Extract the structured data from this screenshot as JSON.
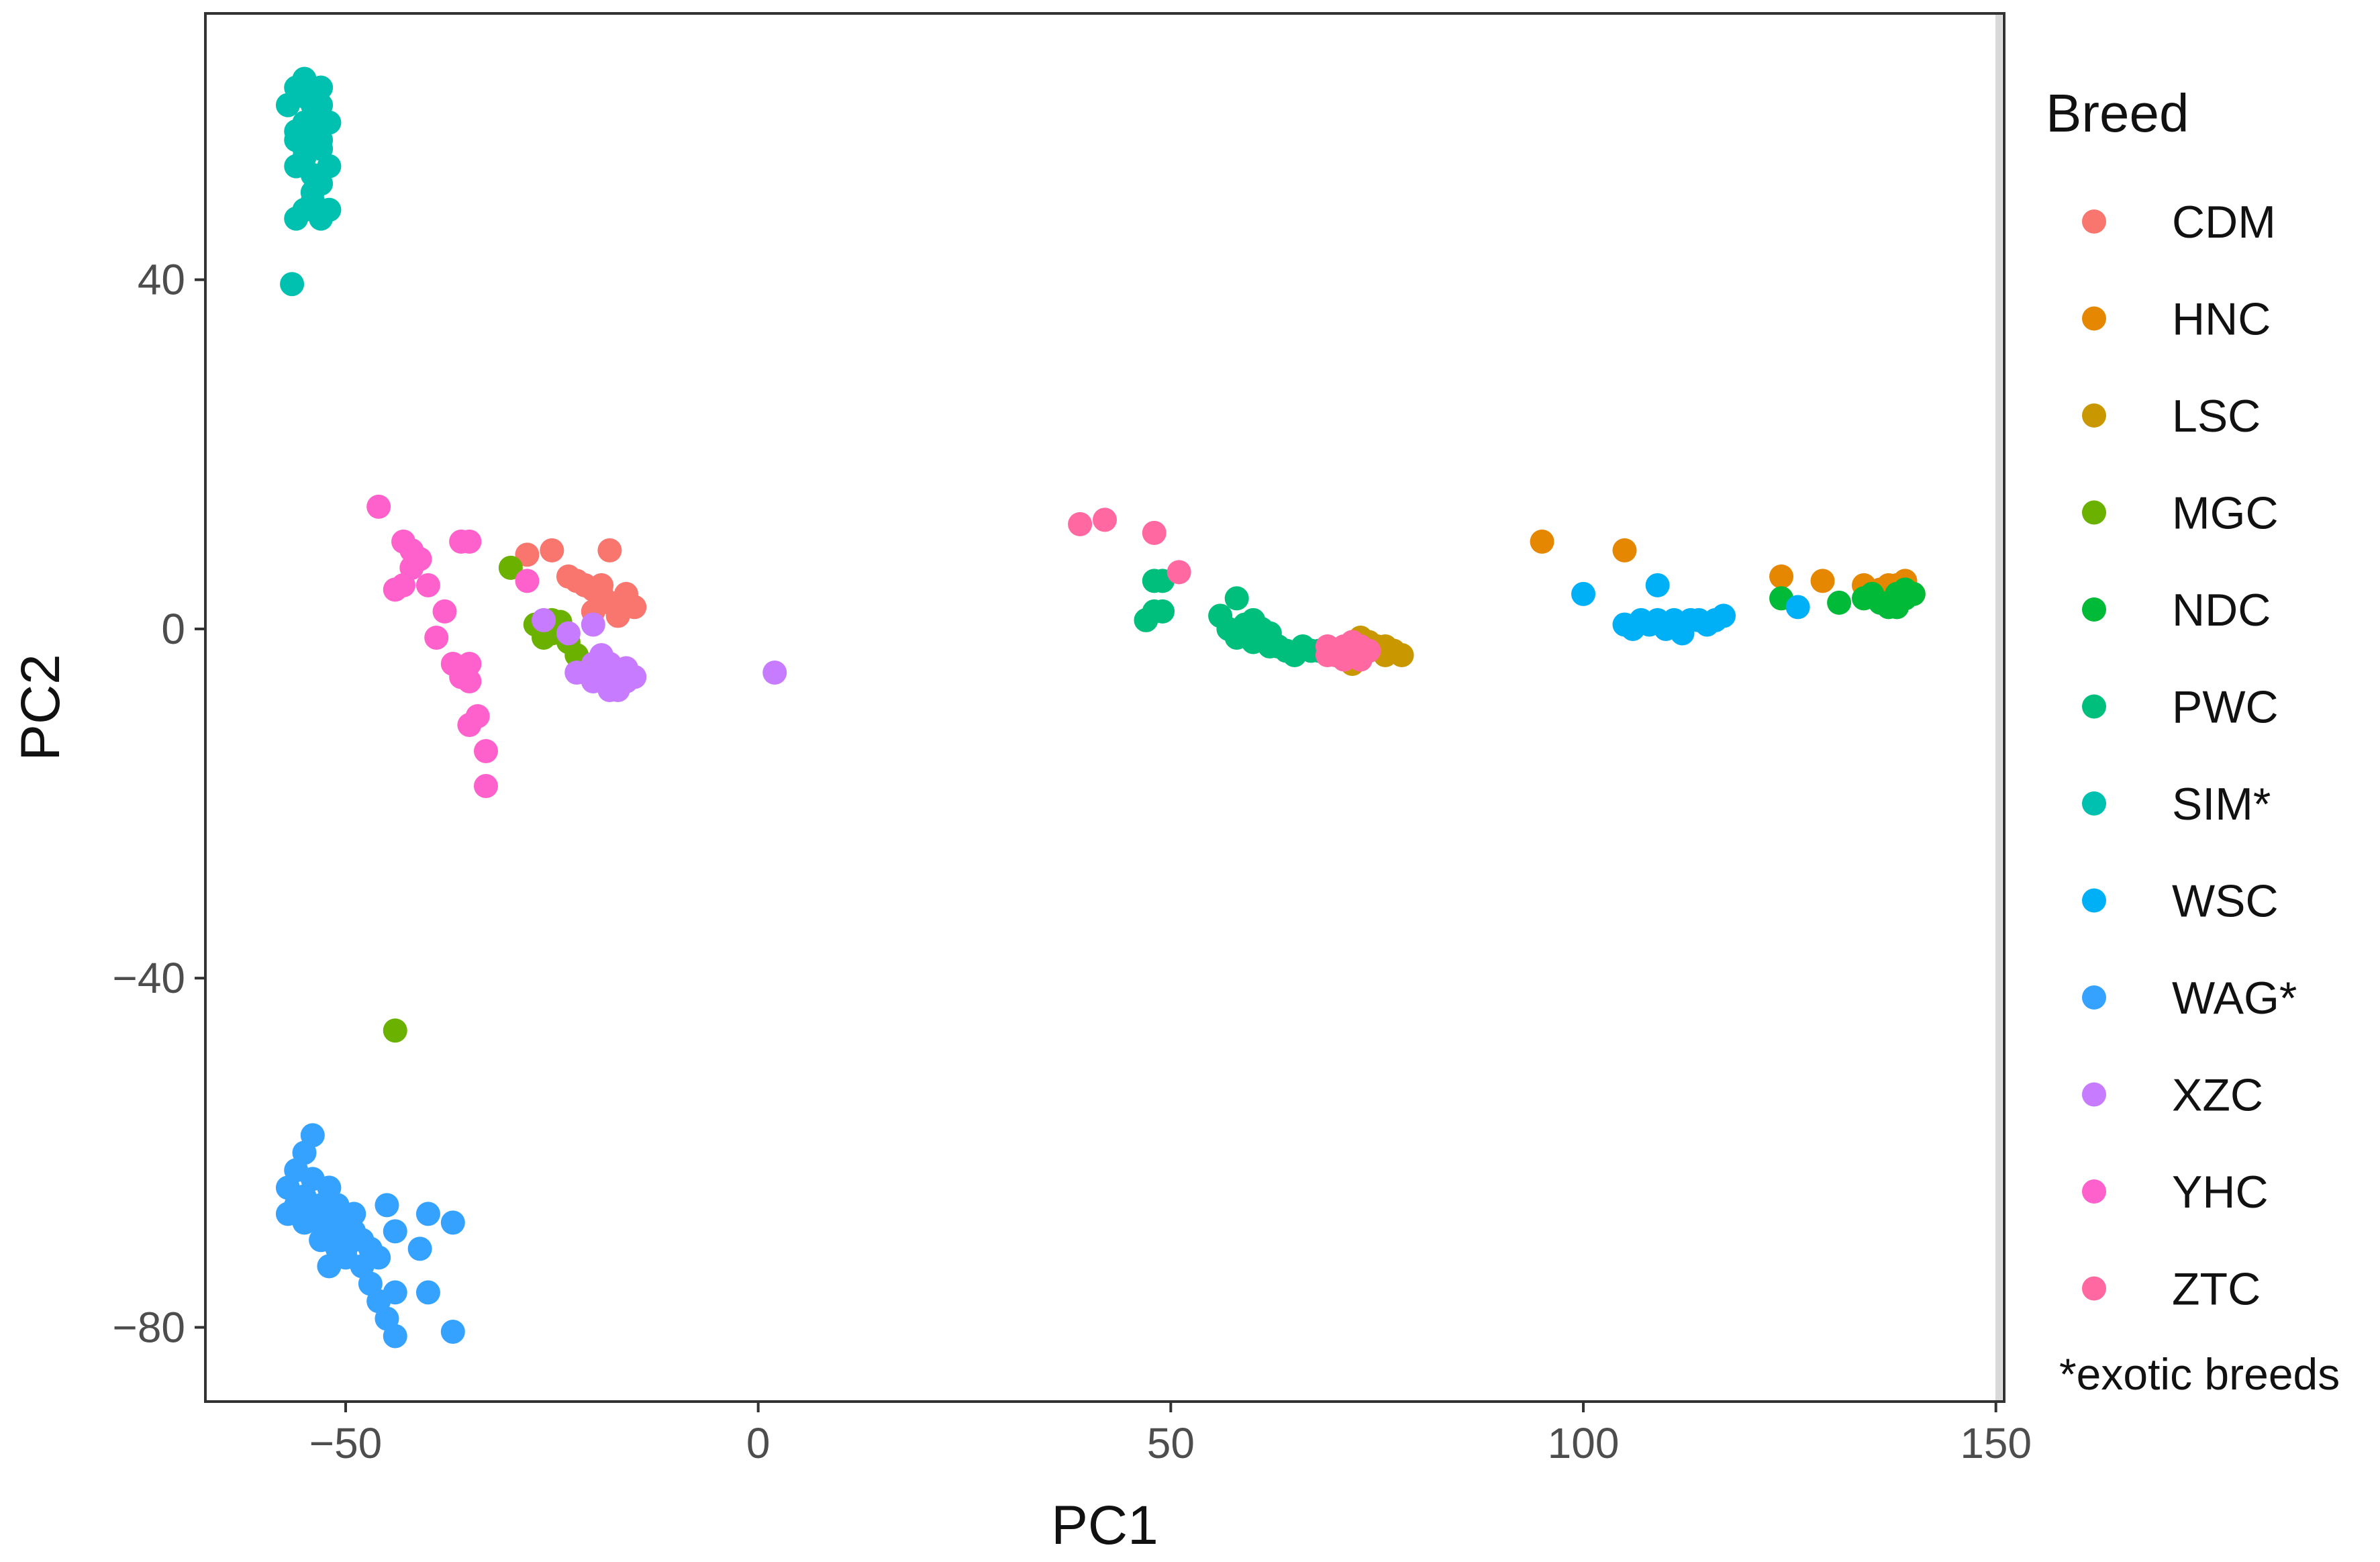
{
  "chart_data": {
    "type": "scatter",
    "title": "",
    "xlabel": "PC1",
    "ylabel": "PC2",
    "xlim": [
      -67,
      151
    ],
    "ylim": [
      -88.5,
      70.5
    ],
    "xticks": [
      -50,
      0,
      50,
      100,
      150
    ],
    "yticks": [
      -80,
      -40,
      0,
      40
    ],
    "xtick_labels": [
      "−50",
      "0",
      "50",
      "100",
      "150"
    ],
    "ytick_labels": [
      "−80",
      "−40",
      "0",
      "40"
    ],
    "grid": false,
    "legend": {
      "title": "Breed",
      "placement": "right",
      "note": "*exotic breeds"
    },
    "series": [
      {
        "name": "CDM",
        "color": "#F8766D",
        "points": [
          [
            -28,
            8.5
          ],
          [
            -25,
            9
          ],
          [
            -18,
            9
          ],
          [
            -23,
            6
          ],
          [
            -21,
            5
          ],
          [
            -20,
            4.5
          ],
          [
            -19,
            4
          ],
          [
            -18,
            3
          ],
          [
            -17,
            2
          ],
          [
            -16,
            4
          ],
          [
            -20,
            2
          ],
          [
            -17,
            1.5
          ],
          [
            -19,
            5
          ],
          [
            -15,
            2.5
          ],
          [
            -22,
            5.5
          ]
        ]
      },
      {
        "name": "HNC",
        "color": "#E58700",
        "points": [
          [
            95,
            10
          ],
          [
            105,
            9
          ],
          [
            124,
            6
          ],
          [
            129,
            5.5
          ],
          [
            134,
            5
          ],
          [
            136,
            4.5
          ],
          [
            138,
            5
          ],
          [
            139,
            4.5
          ],
          [
            140,
            4
          ],
          [
            137,
            5
          ],
          [
            139,
            5.5
          ],
          [
            135,
            4
          ]
        ]
      },
      {
        "name": "LSC",
        "color": "#C99800",
        "points": [
          [
            72,
            -2
          ],
          [
            73,
            -3
          ],
          [
            74,
            -2.5
          ],
          [
            75,
            -2
          ],
          [
            76,
            -3
          ],
          [
            77,
            -2.5
          ],
          [
            78,
            -3
          ],
          [
            72,
            -4
          ],
          [
            74,
            -1.5
          ],
          [
            76,
            -2
          ],
          [
            73,
            -1
          ]
        ]
      },
      {
        "name": "MGC",
        "color": "#6BB100",
        "points": [
          [
            -30,
            7
          ],
          [
            -27,
            0.5
          ],
          [
            -25,
            1
          ],
          [
            -26,
            -1
          ],
          [
            -24,
            0
          ],
          [
            -23,
            -1.5
          ],
          [
            -22,
            -3
          ],
          [
            -25,
            -0.5
          ],
          [
            -44,
            -46
          ],
          [
            -24,
            0.8
          ]
        ]
      },
      {
        "name": "NDC",
        "color": "#00BA38",
        "points": [
          [
            124,
            3.5
          ],
          [
            131,
            3
          ],
          [
            134,
            3.5
          ],
          [
            136,
            3
          ],
          [
            137,
            2.5
          ],
          [
            138,
            4
          ],
          [
            139,
            3.5
          ],
          [
            140,
            4
          ],
          [
            137,
            3
          ],
          [
            138,
            2.5
          ],
          [
            135,
            4
          ],
          [
            139,
            4.5
          ]
        ]
      },
      {
        "name": "PWC",
        "color": "#00BF7D",
        "points": [
          [
            47,
            1
          ],
          [
            48,
            5.5
          ],
          [
            49,
            5.5
          ],
          [
            48,
            2
          ],
          [
            49,
            2
          ],
          [
            56,
            1.5
          ],
          [
            58,
            3.5
          ],
          [
            57,
            0
          ],
          [
            59,
            0.5
          ],
          [
            60,
            1
          ],
          [
            61,
            -1
          ],
          [
            58,
            -1
          ],
          [
            62,
            -0.5
          ],
          [
            60,
            -1.5
          ],
          [
            63,
            -2
          ],
          [
            64,
            -2.5
          ],
          [
            66,
            -2
          ],
          [
            67,
            -2.5
          ],
          [
            62,
            -2
          ],
          [
            59,
            0
          ],
          [
            65,
            -3
          ],
          [
            68,
            -2.5
          ],
          [
            70,
            -3
          ],
          [
            61,
            0
          ]
        ]
      },
      {
        "name": "SIM*",
        "color": "#00C0AF",
        "points": [
          [
            -56.5,
            39.5
          ],
          [
            -56,
            47
          ],
          [
            -55,
            48
          ],
          [
            -53,
            47
          ],
          [
            -52,
            48
          ],
          [
            -54,
            52
          ],
          [
            -55,
            55
          ],
          [
            -53,
            56
          ],
          [
            -56,
            57
          ],
          [
            -54,
            58
          ],
          [
            -53,
            60
          ],
          [
            -55,
            61
          ],
          [
            -56,
            62
          ],
          [
            -55,
            63
          ],
          [
            -54,
            60
          ],
          [
            -52,
            58
          ],
          [
            -53,
            55
          ],
          [
            -52,
            53
          ],
          [
            -54,
            50
          ],
          [
            -56,
            53
          ],
          [
            -57,
            60
          ],
          [
            -55,
            58
          ],
          [
            -53,
            62
          ],
          [
            -54,
            57
          ],
          [
            -56,
            56
          ],
          [
            -55,
            54
          ],
          [
            -53,
            51
          ],
          [
            -54,
            49
          ]
        ]
      },
      {
        "name": "WSC",
        "color": "#00B0F6",
        "points": [
          [
            100,
            4
          ],
          [
            109,
            5
          ],
          [
            126,
            2.5
          ],
          [
            105,
            0.5
          ],
          [
            107,
            1
          ],
          [
            108,
            0.5
          ],
          [
            109,
            1
          ],
          [
            110,
            0
          ],
          [
            111,
            1
          ],
          [
            112,
            0
          ],
          [
            113,
            1
          ],
          [
            115,
            0.5
          ],
          [
            117,
            1.5
          ],
          [
            106,
            0
          ],
          [
            114,
            1
          ],
          [
            116,
            1
          ],
          [
            112,
            -0.5
          ]
        ]
      },
      {
        "name": "WAG*",
        "color": "#35A2FF",
        "points": [
          [
            -54,
            -58
          ],
          [
            -55,
            -60
          ],
          [
            -56,
            -62
          ],
          [
            -57,
            -64
          ],
          [
            -56,
            -66
          ],
          [
            -57,
            -67
          ],
          [
            -55,
            -65
          ],
          [
            -54,
            -63
          ],
          [
            -53,
            -66
          ],
          [
            -52,
            -64
          ],
          [
            -53,
            -68
          ],
          [
            -52,
            -70
          ],
          [
            -51,
            -66
          ],
          [
            -50,
            -68
          ],
          [
            -51,
            -71
          ],
          [
            -52,
            -73
          ],
          [
            -50,
            -72
          ],
          [
            -49,
            -69
          ],
          [
            -48,
            -70
          ],
          [
            -47,
            -71
          ],
          [
            -48,
            -73
          ],
          [
            -46,
            -72
          ],
          [
            -45,
            -66
          ],
          [
            -44,
            -69
          ],
          [
            -47,
            -75
          ],
          [
            -46,
            -77
          ],
          [
            -44,
            -76
          ],
          [
            -45,
            -79
          ],
          [
            -44,
            -81
          ],
          [
            -40,
            -67
          ],
          [
            -37,
            -68
          ],
          [
            -41,
            -71
          ],
          [
            -40,
            -76
          ],
          [
            -37,
            -80.5
          ],
          [
            -54,
            -67
          ],
          [
            -53,
            -70
          ],
          [
            -55,
            -68
          ],
          [
            -51,
            -69
          ],
          [
            -49,
            -67
          ],
          [
            -50,
            -71
          ],
          [
            -52,
            -67
          ]
        ]
      },
      {
        "name": "XZC",
        "color": "#C77CFF",
        "points": [
          [
            2,
            -5
          ],
          [
            -26,
            1
          ],
          [
            -23,
            -0.5
          ],
          [
            -20,
            0.5
          ],
          [
            -21,
            -5
          ],
          [
            -20,
            -4
          ],
          [
            -19,
            -5
          ],
          [
            -18,
            -6
          ],
          [
            -17,
            -5
          ],
          [
            -16,
            -6
          ],
          [
            -15,
            -5.5
          ],
          [
            -18,
            -7
          ],
          [
            -17,
            -7
          ],
          [
            -19,
            -3
          ],
          [
            -16,
            -4.5
          ],
          [
            -20,
            -6
          ],
          [
            -22,
            -5
          ],
          [
            -18,
            -4
          ]
        ]
      },
      {
        "name": "YHC",
        "color": "#FF61CC",
        "points": [
          [
            -46,
            14
          ],
          [
            -43,
            10
          ],
          [
            -42,
            9
          ],
          [
            -41,
            8
          ],
          [
            -42,
            7
          ],
          [
            -43,
            5
          ],
          [
            -44,
            4.5
          ],
          [
            -35,
            10
          ],
          [
            -36,
            10
          ],
          [
            -28,
            5.5
          ],
          [
            -38,
            2
          ],
          [
            -39,
            -1
          ],
          [
            -37,
            -4
          ],
          [
            -35,
            -4
          ],
          [
            -36,
            -5.5
          ],
          [
            -35,
            -6
          ],
          [
            -36,
            -4.5
          ],
          [
            -34,
            -10
          ],
          [
            -35,
            -11
          ],
          [
            -33,
            -14
          ],
          [
            -33,
            -18
          ],
          [
            -40,
            5
          ]
        ]
      },
      {
        "name": "ZTC",
        "color": "#FF68A1",
        "points": [
          [
            39,
            12
          ],
          [
            42,
            12.5
          ],
          [
            48,
            11
          ],
          [
            51,
            6.5
          ],
          [
            69,
            -3
          ],
          [
            70,
            -2.5
          ],
          [
            71,
            -2
          ],
          [
            72,
            -3
          ],
          [
            73,
            -2
          ],
          [
            71,
            -3.5
          ],
          [
            70,
            -3
          ],
          [
            74,
            -2.5
          ],
          [
            72,
            -1.5
          ],
          [
            69,
            -2
          ],
          [
            73,
            -3.5
          ]
        ]
      }
    ]
  }
}
